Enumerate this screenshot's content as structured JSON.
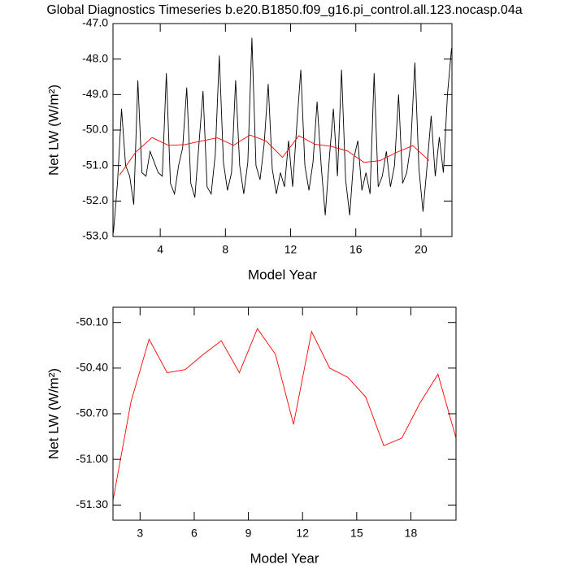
{
  "chart_data": [
    {
      "type": "line",
      "title": "Global Diagnostics Timeseries b.e20.B1850.f09_g16.pi_control.all.123.nocasp.04a",
      "xlabel": "Model Year",
      "ylabel": "Net LW (W/m²)",
      "xlim": [
        1.1,
        21.9
      ],
      "ylim": [
        -53,
        -47
      ],
      "xticks": [
        4,
        8,
        12,
        16,
        20
      ],
      "yticks": [
        {
          "value": -47,
          "label": "-47.0"
        },
        {
          "value": -48,
          "label": "-48.0"
        },
        {
          "value": -49,
          "label": "-49.0"
        },
        {
          "value": -50,
          "label": "-50.0"
        },
        {
          "value": -51,
          "label": "-51.0"
        },
        {
          "value": -52,
          "label": "-52.0"
        },
        {
          "value": -53,
          "label": "-53.0"
        }
      ],
      "series": [
        {
          "color": "#000000",
          "x": [
            1.125,
            1.375,
            1.625,
            1.875,
            2.125,
            2.375,
            2.625,
            2.875,
            3.125,
            3.375,
            3.625,
            3.875,
            4.125,
            4.375,
            4.625,
            4.875,
            5.125,
            5.375,
            5.625,
            5.875,
            6.125,
            6.375,
            6.625,
            6.875,
            7.125,
            7.375,
            7.625,
            7.875,
            8.125,
            8.375,
            8.625,
            8.875,
            9.125,
            9.375,
            9.625,
            9.875,
            10.125,
            10.375,
            10.625,
            10.875,
            11.125,
            11.375,
            11.625,
            11.875,
            12.125,
            12.375,
            12.625,
            12.875,
            13.125,
            13.375,
            13.625,
            13.875,
            14.125,
            14.375,
            14.625,
            14.875,
            15.125,
            15.375,
            15.625,
            15.875,
            16.125,
            16.375,
            16.625,
            16.875,
            17.125,
            17.375,
            17.625,
            17.875,
            18.125,
            18.375,
            18.625,
            18.875,
            19.125,
            19.375,
            19.625,
            19.875,
            20.125,
            20.375,
            20.625,
            20.875,
            21.125,
            21.375,
            21.625,
            21.875
          ],
          "values": [
            -52.9,
            -51.5,
            -49.4,
            -51.0,
            -51.3,
            -52.1,
            -48.6,
            -51.2,
            -51.3,
            -50.6,
            -50.9,
            -51.2,
            -51.3,
            -48.4,
            -51.5,
            -51.8,
            -51.0,
            -50.5,
            -48.8,
            -51.5,
            -51.9,
            -50.4,
            -48.9,
            -51.6,
            -51.8,
            -50.7,
            -47.9,
            -50.9,
            -51.7,
            -51.2,
            -48.6,
            -51.0,
            -51.8,
            -50.9,
            -47.4,
            -51.0,
            -51.4,
            -50.4,
            -48.7,
            -51.1,
            -51.8,
            -51.2,
            -51.6,
            -50.3,
            -51.6,
            -49.9,
            -48.3,
            -51.0,
            -51.7,
            -50.9,
            -49.2,
            -51.0,
            -52.4,
            -50.8,
            -49.4,
            -51.3,
            -48.3,
            -51.4,
            -52.4,
            -50.8,
            -50.3,
            -51.7,
            -51.2,
            -51.8,
            -48.4,
            -51.6,
            -51.3,
            -50.6,
            -51.6,
            -51.0,
            -49.0,
            -51.5,
            -51.2,
            -50.4,
            -48.1,
            -51.1,
            -52.3,
            -51.0,
            -49.6,
            -51.3,
            -50.2,
            -51.2,
            -49.0,
            -47.7
          ]
        },
        {
          "color": "#ff0000",
          "x": [
            1.5,
            2.5,
            3.5,
            4.5,
            5.5,
            6.5,
            7.5,
            8.5,
            9.5,
            10.5,
            11.5,
            12.5,
            13.5,
            14.5,
            15.5,
            16.5,
            17.5,
            18.5,
            19.5,
            20.5
          ],
          "values": [
            -51.27,
            -50.62,
            -50.21,
            -50.43,
            -50.41,
            -50.31,
            -50.22,
            -50.43,
            -50.14,
            -50.31,
            -50.77,
            -50.16,
            -50.4,
            -50.46,
            -50.59,
            -50.91,
            -50.86,
            -50.63,
            -50.44,
            -50.86
          ]
        }
      ]
    },
    {
      "type": "line",
      "xlabel": "Model Year",
      "ylabel": "Net LW (W/m²)",
      "xlim": [
        1.5,
        20.5
      ],
      "ylim": [
        -51.4,
        -50.0
      ],
      "xticks": [
        3,
        6,
        9,
        12,
        15,
        18
      ],
      "yticks": [
        {
          "value": -50.1,
          "label": "-50.10"
        },
        {
          "value": -50.4,
          "label": "-50.40"
        },
        {
          "value": -50.7,
          "label": "-50.70"
        },
        {
          "value": -51.0,
          "label": "-51.00"
        },
        {
          "value": -51.3,
          "label": "-51.30"
        }
      ],
      "series": [
        {
          "color": "#ff0000",
          "x": [
            1.5,
            2.5,
            3.5,
            4.5,
            5.5,
            6.5,
            7.5,
            8.5,
            9.5,
            10.5,
            11.5,
            12.5,
            13.5,
            14.5,
            15.5,
            16.5,
            17.5,
            18.5,
            19.5,
            20.5
          ],
          "values": [
            -51.27,
            -50.62,
            -50.21,
            -50.43,
            -50.41,
            -50.31,
            -50.22,
            -50.43,
            -50.14,
            -50.31,
            -50.77,
            -50.16,
            -50.4,
            -50.46,
            -50.59,
            -50.91,
            -50.86,
            -50.63,
            -50.44,
            -50.86
          ]
        }
      ]
    }
  ]
}
